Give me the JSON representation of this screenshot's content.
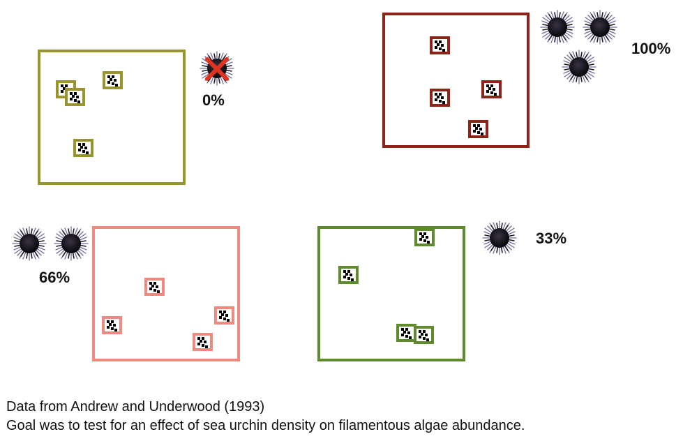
{
  "colors": {
    "plot_0": "#9a942c",
    "plot_100": "#8c2419",
    "plot_66": "#ef8a80",
    "plot_33": "#5e8b2c",
    "cross": "#e0321e"
  },
  "treatments": [
    {
      "label": "0%",
      "urchins": 0,
      "removed": true
    },
    {
      "label": "100%",
      "urchins": 3
    },
    {
      "label": "66%",
      "urchins": 2
    },
    {
      "label": "33%",
      "urchins": 1
    }
  ],
  "caption": {
    "line1": "Data from Andrew and Underwood (1993)",
    "line2": "Goal was to test for an effect of sea urchin density on filamentous algae abundance."
  }
}
